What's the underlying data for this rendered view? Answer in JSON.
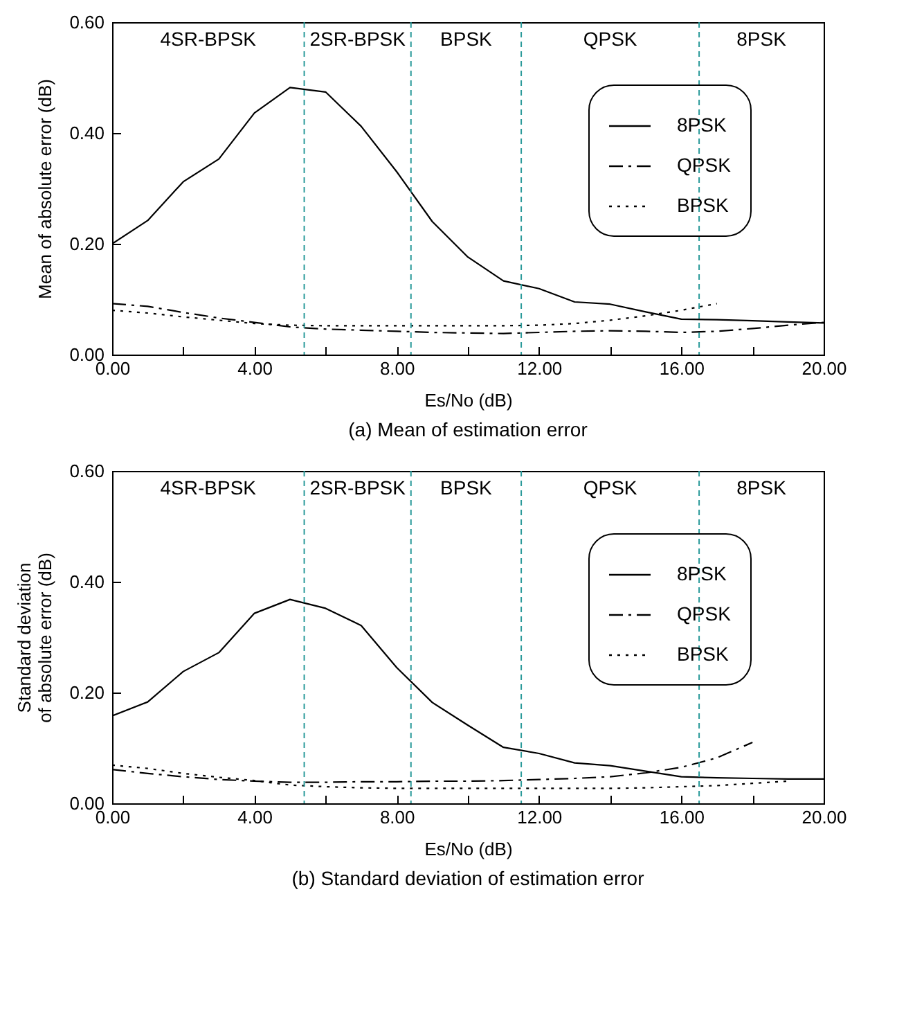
{
  "chart_data": [
    {
      "type": "line",
      "title": "(a) Mean of estimation error",
      "xlabel": "Es/No (dB)",
      "ylabel": "Mean of absolute error (dB)",
      "xlim": [
        0,
        20
      ],
      "ylim": [
        0,
        0.6
      ],
      "xticks": [
        {
          "value": 0,
          "label": "0.00"
        },
        {
          "value": 2,
          "label": null
        },
        {
          "value": 4,
          "label": "4.00"
        },
        {
          "value": 6,
          "label": null
        },
        {
          "value": 8,
          "label": "8.00"
        },
        {
          "value": 10,
          "label": null
        },
        {
          "value": 12,
          "label": "12.00"
        },
        {
          "value": 14,
          "label": null
        },
        {
          "value": 16,
          "label": "16.00"
        },
        {
          "value": 18,
          "label": null
        },
        {
          "value": 20,
          "label": "20.00"
        }
      ],
      "yticks": [
        {
          "value": 0,
          "label": "0.00"
        },
        {
          "value": 0.2,
          "label": "0.20"
        },
        {
          "value": 0.4,
          "label": "0.40"
        },
        {
          "value": 0.6,
          "label": "0.60"
        }
      ],
      "legend": "top right",
      "grid": false,
      "series": [
        {
          "name": "8PSK",
          "color": "#000000",
          "line_style": "solid",
          "x": [
            0,
            1,
            2,
            3,
            4,
            5,
            6,
            7,
            8,
            9,
            10,
            11,
            12,
            13,
            14,
            15,
            16,
            17,
            18,
            19,
            20
          ],
          "values": [
            0.2,
            0.242,
            0.312,
            0.353,
            0.436,
            0.482,
            0.474,
            0.412,
            0.33,
            0.24,
            0.176,
            0.133,
            0.119,
            0.095,
            0.091,
            0.077,
            0.064,
            0.063,
            0.061,
            0.059,
            0.057
          ]
        },
        {
          "name": "QPSK",
          "color": "#000000",
          "line_style": "dashdot",
          "x": [
            0,
            1,
            2,
            3,
            4,
            5,
            6,
            7,
            8,
            9,
            10,
            11,
            12,
            13,
            14,
            15,
            16,
            17,
            18,
            19,
            20
          ],
          "values": [
            0.092,
            0.087,
            0.076,
            0.066,
            0.058,
            0.05,
            0.046,
            0.044,
            0.042,
            0.04,
            0.039,
            0.038,
            0.04,
            0.042,
            0.043,
            0.042,
            0.04,
            0.042,
            0.047,
            0.053,
            0.058
          ]
        },
        {
          "name": "BPSK",
          "color": "#000000",
          "line_style": "dotted",
          "x": [
            0,
            1,
            2,
            3,
            4,
            5,
            6,
            7,
            8,
            9,
            10,
            11,
            12,
            13,
            14,
            15,
            16,
            17
          ],
          "values": [
            0.08,
            0.075,
            0.068,
            0.062,
            0.056,
            0.053,
            0.052,
            0.052,
            0.052,
            0.052,
            0.052,
            0.052,
            0.053,
            0.056,
            0.062,
            0.07,
            0.08,
            0.092
          ]
        }
      ],
      "ref_lines": [
        {
          "axis": "x",
          "value": 5.4,
          "color": "#2a9a9a",
          "line_style": "dashed"
        },
        {
          "axis": "x",
          "value": 8.4,
          "color": "#2a9a9a",
          "line_style": "dashed"
        },
        {
          "axis": "x",
          "value": 11.5,
          "color": "#2a9a9a",
          "line_style": "dashed"
        },
        {
          "axis": "x",
          "value": 16.5,
          "color": "#2a9a9a",
          "line_style": "dashed"
        }
      ],
      "annotations": [
        "4SR-BPSK",
        "2SR-BPSK",
        "BPSK",
        "QPSK",
        "8PSK"
      ]
    },
    {
      "type": "line",
      "title": "(b) Standard deviation of estimation error",
      "xlabel": "Es/No (dB)",
      "ylabel": "Standard deviation\nof absolute error (dB)",
      "xlim": [
        0,
        20
      ],
      "ylim": [
        0,
        0.6
      ],
      "xticks": [
        {
          "value": 0,
          "label": "0.00"
        },
        {
          "value": 2,
          "label": null
        },
        {
          "value": 4,
          "label": "4.00"
        },
        {
          "value": 6,
          "label": null
        },
        {
          "value": 8,
          "label": "8.00"
        },
        {
          "value": 10,
          "label": null
        },
        {
          "value": 12,
          "label": "12.00"
        },
        {
          "value": 14,
          "label": null
        },
        {
          "value": 16,
          "label": "16.00"
        },
        {
          "value": 18,
          "label": null
        },
        {
          "value": 20,
          "label": "20.00"
        }
      ],
      "yticks": [
        {
          "value": 0,
          "label": "0.00"
        },
        {
          "value": 0.2,
          "label": "0.20"
        },
        {
          "value": 0.4,
          "label": "0.40"
        },
        {
          "value": 0.6,
          "label": "0.60"
        }
      ],
      "legend": "top right",
      "grid": false,
      "series": [
        {
          "name": "8PSK",
          "color": "#000000",
          "line_style": "solid",
          "x": [
            0,
            1,
            2,
            3,
            4,
            5,
            6,
            7,
            8,
            9,
            10,
            11,
            12,
            13,
            14,
            15,
            16,
            17,
            18,
            19,
            20
          ],
          "values": [
            0.158,
            0.183,
            0.238,
            0.272,
            0.343,
            0.368,
            0.352,
            0.321,
            0.245,
            0.182,
            0.141,
            0.101,
            0.09,
            0.073,
            0.068,
            0.058,
            0.048,
            0.046,
            0.045,
            0.044,
            0.044
          ]
        },
        {
          "name": "QPSK",
          "color": "#000000",
          "line_style": "dashdot",
          "x": [
            0,
            1,
            2,
            3,
            4,
            5,
            6,
            7,
            8,
            9,
            10,
            11,
            12,
            13,
            14,
            15,
            16,
            17,
            18
          ],
          "values": [
            0.061,
            0.054,
            0.048,
            0.043,
            0.04,
            0.038,
            0.038,
            0.039,
            0.039,
            0.04,
            0.04,
            0.041,
            0.043,
            0.045,
            0.048,
            0.055,
            0.065,
            0.082,
            0.11
          ]
        },
        {
          "name": "BPSK",
          "color": "#000000",
          "line_style": "dotted",
          "x": [
            0,
            1,
            2,
            3,
            4,
            5,
            6,
            7,
            8,
            9,
            10,
            11,
            12,
            13,
            14,
            15,
            16,
            17,
            18,
            19
          ],
          "values": [
            0.069,
            0.063,
            0.054,
            0.047,
            0.041,
            0.033,
            0.03,
            0.028,
            0.027,
            0.027,
            0.027,
            0.027,
            0.027,
            0.027,
            0.027,
            0.028,
            0.03,
            0.032,
            0.036,
            0.04
          ]
        }
      ],
      "ref_lines": [
        {
          "axis": "x",
          "value": 5.4,
          "color": "#2a9a9a",
          "line_style": "dashed"
        },
        {
          "axis": "x",
          "value": 8.4,
          "color": "#2a9a9a",
          "line_style": "dashed"
        },
        {
          "axis": "x",
          "value": 11.5,
          "color": "#2a9a9a",
          "line_style": "dashed"
        },
        {
          "axis": "x",
          "value": 16.5,
          "color": "#2a9a9a",
          "line_style": "dashed"
        }
      ],
      "annotations": [
        "4SR-BPSK",
        "2SR-BPSK",
        "BPSK",
        "QPSK",
        "8PSK"
      ]
    }
  ]
}
